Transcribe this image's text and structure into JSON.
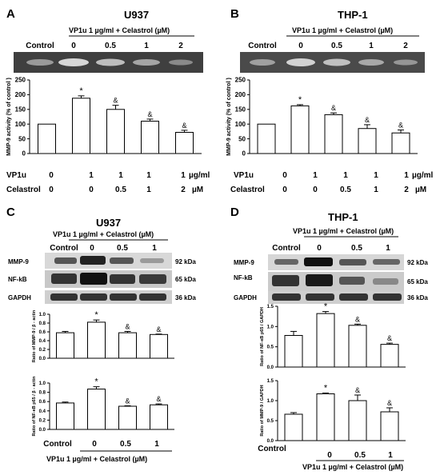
{
  "panels": {
    "A": {
      "letter": "A",
      "title": "U937",
      "header": "VP1u 1 µg/ml + Celastrol (µM)",
      "gel_labels": [
        "Control",
        "0",
        "0.5",
        "1",
        "2"
      ]
    },
    "B": {
      "letter": "B",
      "title": "THP-1",
      "header": "VP1u 1 µg/ml + Celastrol (µM)",
      "gel_labels": [
        "Control",
        "0",
        "0.5",
        "1",
        "2"
      ]
    },
    "C": {
      "letter": "C",
      "title": "U937",
      "header": "VP1u 1 µg/ml + Celastrol (µM)",
      "gel_labels": [
        "Control",
        "0",
        "0.5",
        "1"
      ],
      "blot_rows": [
        {
          "name": "MMP-9",
          "kda": "92 kDa"
        },
        {
          "name": "NF-kB",
          "kda": "65 kDa"
        },
        {
          "name": "GAPDH",
          "kda": "36 kDa"
        }
      ]
    },
    "D": {
      "letter": "D",
      "title": "THP-1",
      "header": "VP1u 1 µg/ml + Celastrol (µM)",
      "gel_labels": [
        "Control",
        "0",
        "0.5",
        "1"
      ],
      "blot_rows": [
        {
          "name": "MMP-9",
          "kda": "92 kDa"
        },
        {
          "name": "NF-kB",
          "kda": "65 kDa"
        },
        {
          "name": "GAPDH",
          "kda": "36 kDa"
        }
      ]
    }
  },
  "treatment_table": {
    "rows": [
      {
        "label": "VP1u",
        "values": [
          "0",
          "1",
          "1",
          "1",
          "1"
        ],
        "unit": "µg/ml"
      },
      {
        "label": "Celastrol",
        "values": [
          "0",
          "0",
          "0.5",
          "1",
          "2"
        ],
        "unit": "µM"
      }
    ]
  },
  "bottom_axis": {
    "categories": [
      "Control",
      "0",
      "0.5",
      "1"
    ],
    "caption": "VP1u 1 µg/ml + Celastrol (µM)"
  },
  "chart_data": [
    {
      "id": "A",
      "type": "bar",
      "title": "U937",
      "ylabel": "MMP-9 activity (% of control )",
      "ylim": [
        0,
        250
      ],
      "yticks": [
        "0",
        "50",
        "100",
        "150",
        "200",
        "250"
      ],
      "values": [
        100,
        188,
        150,
        110,
        72
      ],
      "errors": [
        0,
        8,
        14,
        7,
        7
      ],
      "annotations": [
        "",
        "*",
        "&",
        "&",
        "&"
      ]
    },
    {
      "id": "B",
      "type": "bar",
      "title": "THP-1",
      "ylabel": "MMP-9 activity (% of control )",
      "ylim": [
        0,
        250
      ],
      "yticks": [
        "0",
        "50",
        "100",
        "150",
        "200",
        "250"
      ],
      "values": [
        100,
        162,
        132,
        85,
        70
      ],
      "errors": [
        0,
        4,
        6,
        13,
        10
      ],
      "annotations": [
        "",
        "*",
        "&",
        "&",
        "&"
      ]
    },
    {
      "id": "C1",
      "type": "bar",
      "ylabel": "Ratio of MMP-9 / β - actin",
      "ylim": [
        0,
        1
      ],
      "yticks": [
        "0.0",
        "0.2",
        "0.4",
        "0.6",
        "0.8",
        "1.0"
      ],
      "values": [
        0.58,
        0.82,
        0.58,
        0.54
      ],
      "errors": [
        0.03,
        0.05,
        0.03,
        0.01
      ],
      "annotations": [
        "",
        "*",
        "&",
        "&"
      ]
    },
    {
      "id": "C2",
      "type": "bar",
      "ylabel": "Ratio of NF-κB p65 / β - actin",
      "ylim": [
        0,
        1
      ],
      "yticks": [
        "0.0",
        "0.2",
        "0.4",
        "0.6",
        "0.8",
        "1.0"
      ],
      "values": [
        0.57,
        0.87,
        0.5,
        0.53
      ],
      "errors": [
        0.02,
        0.05,
        0.01,
        0.02
      ],
      "annotations": [
        "",
        "*",
        "&",
        "&"
      ]
    },
    {
      "id": "D1",
      "type": "bar",
      "ylabel": "Ratio of NF-κB p65 / GAPDH",
      "ylim": [
        0,
        1.5
      ],
      "yticks": [
        "0.0",
        "0.5",
        "1.0",
        "1.5"
      ],
      "values": [
        0.78,
        1.32,
        1.03,
        0.56
      ],
      "errors": [
        0.1,
        0.05,
        0.03,
        0.03
      ],
      "annotations": [
        "",
        "*",
        "&",
        "&"
      ]
    },
    {
      "id": "D2",
      "type": "bar",
      "ylabel": "Ratio of MMP-9 / GAPDH",
      "ylim": [
        0,
        1.5
      ],
      "yticks": [
        "0.0",
        "0.5",
        "1.0",
        "1.5"
      ],
      "values": [
        0.66,
        1.17,
        1.0,
        0.72
      ],
      "errors": [
        0.04,
        0.02,
        0.14,
        0.1
      ],
      "annotations": [
        "",
        "*",
        "&",
        "&"
      ]
    }
  ]
}
